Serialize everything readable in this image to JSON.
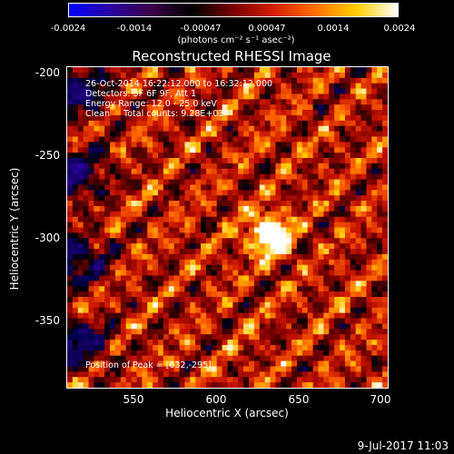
{
  "colorbar": {
    "ticks": [
      "-0.0024",
      "-0.0014",
      "-0.00047",
      "0.00047",
      "0.0014",
      "0.0024"
    ],
    "units": "(photons cm⁻² s⁻¹ asec⁻²)",
    "colors": [
      "#0000ff",
      "#2a00a0",
      "#3a004a",
      "#000000",
      "#7a0000",
      "#d42000",
      "#ff7000",
      "#ffd000",
      "#ffffff"
    ]
  },
  "title": "Reconstructed RHESSI Image",
  "info": {
    "line1": "26-Oct-2014 16:22:12.000 to 16:32:12.000",
    "line2": "Detectors: 3F 6F 9F, Att 1",
    "line3": "Energy Range: 12.0 - 25.0 keV",
    "line4": "Clean     Total counts: 9.28E+03",
    "peak": "Position of Peak = [632,-295]"
  },
  "axes": {
    "xlabel": "Heliocentric X (arcsec)",
    "ylabel": "Heliocentric Y (arcsec)",
    "xticks": [
      "550",
      "600",
      "650",
      "700"
    ],
    "yticks": [
      "-200",
      "-250",
      "-300",
      "-350"
    ],
    "xlim": [
      510,
      705
    ],
    "ylim": [
      -390,
      -195
    ]
  },
  "image": {
    "peak_x": 632,
    "peak_y": -295
  },
  "footer_date": "9-Jul-2017 11:03"
}
